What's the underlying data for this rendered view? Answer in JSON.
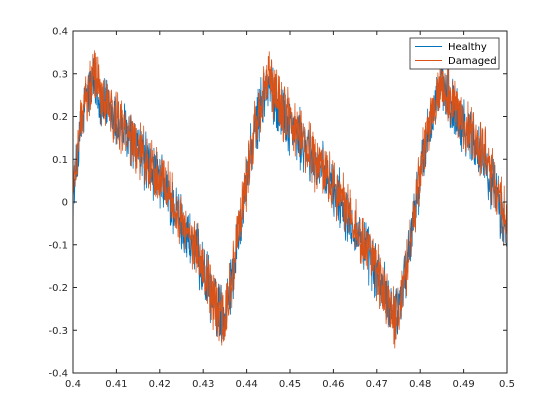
{
  "chart_data": {
    "type": "line",
    "title": "",
    "xlabel": "",
    "ylabel": "",
    "xlim": [
      0.4,
      0.5
    ],
    "ylim": [
      -0.4,
      0.4
    ],
    "x_ticks": [
      "0.4",
      "0.41",
      "0.42",
      "0.43",
      "0.44",
      "0.45",
      "0.46",
      "0.47",
      "0.48",
      "0.49",
      "0.5"
    ],
    "y_ticks": [
      "-0.4",
      "-0.3",
      "-0.2",
      "-0.1",
      "0",
      "0.1",
      "0.2",
      "0.3",
      "0.4"
    ],
    "grid": false,
    "legend_position": "top-right",
    "description": "Noisy sawtooth-like waveform with period of about 0.04 s, peaking near 0.28 and dipping near -0.28",
    "series": [
      {
        "name": "Healthy",
        "color": "#0072BD",
        "x": [
          0.4,
          0.401,
          0.402,
          0.403,
          0.404,
          0.405,
          0.407,
          0.41,
          0.415,
          0.42,
          0.425,
          0.43,
          0.432,
          0.434,
          0.435,
          0.437,
          0.44,
          0.442,
          0.444,
          0.445,
          0.447,
          0.45,
          0.455,
          0.46,
          0.465,
          0.47,
          0.472,
          0.474,
          0.475,
          0.477,
          0.48,
          0.482,
          0.484,
          0.485,
          0.487,
          0.49,
          0.495,
          0.5
        ],
        "y": [
          0.0,
          0.1,
          0.18,
          0.24,
          0.27,
          0.27,
          0.23,
          0.19,
          0.12,
          0.05,
          -0.05,
          -0.16,
          -0.22,
          -0.26,
          -0.26,
          -0.15,
          0.05,
          0.17,
          0.25,
          0.27,
          0.23,
          0.18,
          0.1,
          0.03,
          -0.06,
          -0.17,
          -0.22,
          -0.26,
          -0.25,
          -0.14,
          0.06,
          0.17,
          0.25,
          0.27,
          0.23,
          0.18,
          0.1,
          -0.08
        ]
      },
      {
        "name": "Damaged",
        "color": "#D95319",
        "x": [
          0.4,
          0.401,
          0.402,
          0.403,
          0.404,
          0.405,
          0.407,
          0.41,
          0.415,
          0.42,
          0.425,
          0.43,
          0.432,
          0.434,
          0.435,
          0.437,
          0.44,
          0.442,
          0.444,
          0.445,
          0.447,
          0.45,
          0.455,
          0.46,
          0.465,
          0.47,
          0.472,
          0.474,
          0.475,
          0.477,
          0.48,
          0.482,
          0.484,
          0.485,
          0.487,
          0.49,
          0.495,
          0.5
        ],
        "y": [
          0.02,
          0.12,
          0.2,
          0.25,
          0.28,
          0.28,
          0.24,
          0.2,
          0.13,
          0.06,
          -0.04,
          -0.15,
          -0.22,
          -0.27,
          -0.27,
          -0.16,
          0.06,
          0.18,
          0.26,
          0.28,
          0.24,
          0.19,
          0.11,
          0.04,
          -0.05,
          -0.16,
          -0.22,
          -0.27,
          -0.26,
          -0.15,
          0.07,
          0.18,
          0.26,
          0.28,
          0.24,
          0.19,
          0.11,
          -0.06
        ]
      }
    ]
  }
}
